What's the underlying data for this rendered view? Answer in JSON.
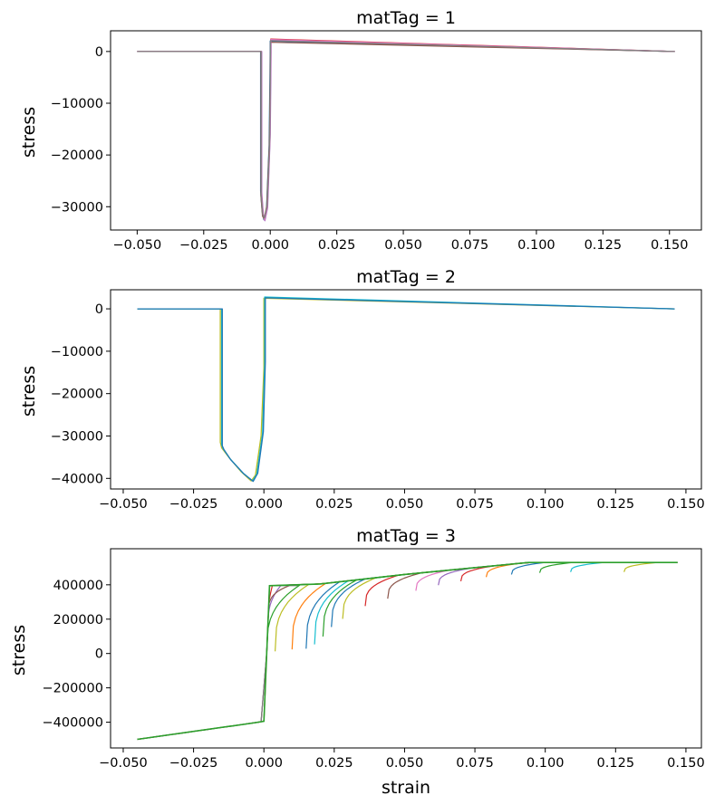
{
  "figure": {
    "xlabel": "strain"
  },
  "chart_data": [
    {
      "type": "line",
      "title": "matTag = 1",
      "xlabel": "",
      "ylabel": "stress",
      "xlim": [
        -0.06,
        0.162
      ],
      "ylim": [
        -34500,
        4000
      ],
      "xticks": [
        -0.05,
        -0.025,
        0.0,
        0.025,
        0.05,
        0.075,
        0.1,
        0.125,
        0.15
      ],
      "xtick_labels": [
        "−0.050",
        "−0.025",
        "0.000",
        "0.025",
        "0.050",
        "0.075",
        "0.100",
        "0.125",
        "0.150"
      ],
      "yticks": [
        0,
        -10000,
        -20000,
        -30000
      ],
      "ytick_labels": [
        "0",
        "−10000",
        "−20000",
        "−30000"
      ],
      "series": [
        {
          "color": "#1f77b4",
          "x": [
            -0.05,
            -0.0036,
            -0.0036,
            -0.003,
            -0.0024,
            -0.0014,
            -0.0004,
            0.0,
            0.0,
            0.152
          ],
          "y": [
            0,
            0,
            -27000,
            -31000,
            -32500,
            -30500,
            -18000,
            0,
            2000,
            0
          ]
        },
        {
          "color": "#d62728",
          "x": [
            -0.05,
            -0.0034,
            -0.0034,
            -0.0028,
            -0.0022,
            -0.0012,
            -0.0002,
            0.0002,
            0.0002,
            0.152
          ],
          "y": [
            0,
            0,
            -27500,
            -31200,
            -32300,
            -30000,
            -17000,
            0,
            2400,
            0
          ]
        },
        {
          "color": "#9467bd",
          "x": [
            -0.05,
            -0.0032,
            -0.0032,
            -0.0026,
            -0.002,
            -0.001,
            0.0,
            0.0003,
            0.0003,
            0.152
          ],
          "y": [
            0,
            0,
            -27200,
            -31500,
            -32700,
            -30200,
            -16000,
            0,
            2200,
            0
          ]
        },
        {
          "color": "#8c564b",
          "x": [
            -0.05,
            -0.0035,
            -0.0035,
            -0.0029,
            -0.0023,
            -0.0013,
            -0.0003,
            0.0001,
            0.0001,
            0.152
          ],
          "y": [
            0,
            0,
            -27800,
            -31800,
            -32400,
            -29800,
            -17500,
            0,
            1800,
            0
          ]
        },
        {
          "color": "#e377c2",
          "x": [
            -0.05,
            -0.0033,
            -0.0033,
            -0.0027,
            -0.0021,
            -0.0011,
            -0.0001,
            0.0002,
            0.0002,
            0.152
          ],
          "y": [
            0,
            0,
            -27300,
            -31300,
            -32600,
            -30100,
            -16800,
            0,
            2300,
            0
          ]
        },
        {
          "color": "#7f7f7f",
          "x": [
            -0.05,
            -0.0034,
            -0.0034,
            -0.0028,
            -0.0022,
            -0.0012,
            -0.0002,
            0.0001,
            0.0001,
            0.152
          ],
          "y": [
            0,
            0,
            -27600,
            -31600,
            -32200,
            -29900,
            -17200,
            0,
            2100,
            0
          ]
        }
      ]
    },
    {
      "type": "line",
      "title": "matTag = 2",
      "xlabel": "",
      "ylabel": "stress",
      "xlim": [
        -0.0545,
        0.1555
      ],
      "ylim": [
        -42500,
        4500
      ],
      "xticks": [
        -0.05,
        -0.025,
        0.0,
        0.025,
        0.05,
        0.075,
        0.1,
        0.125,
        0.15
      ],
      "xtick_labels": [
        "−0.050",
        "−0.025",
        "0.000",
        "0.025",
        "0.050",
        "0.075",
        "0.100",
        "0.125",
        "0.150"
      ],
      "yticks": [
        0,
        -10000,
        -20000,
        -30000,
        -40000
      ],
      "ytick_labels": [
        "0",
        "−10000",
        "−20000",
        "−30000",
        "−40000"
      ],
      "series": [
        {
          "color": "#bcbd22",
          "x": [
            -0.045,
            -0.0155,
            -0.0155,
            -0.015,
            -0.0125,
            -0.008,
            -0.0045,
            -0.003,
            -0.001,
            0.0,
            0.0,
            0.146
          ],
          "y": [
            0,
            0,
            -31500,
            -32800,
            -35000,
            -38500,
            -40600,
            -39200,
            -30000,
            -14000,
            2500,
            0
          ]
        },
        {
          "color": "#17becf",
          "x": [
            -0.045,
            -0.015,
            -0.015,
            -0.0145,
            -0.012,
            -0.0075,
            -0.004,
            -0.0025,
            -0.0005,
            0.0003,
            0.0003,
            0.146
          ],
          "y": [
            0,
            0,
            -32000,
            -33000,
            -35400,
            -38700,
            -40600,
            -39000,
            -29500,
            -13000,
            2800,
            0
          ]
        },
        {
          "color": "#1f77b4",
          "x": [
            -0.045,
            -0.0148,
            -0.0148,
            -0.0142,
            -0.0118,
            -0.0072,
            -0.0038,
            -0.0022,
            -0.0002,
            0.0005,
            0.0005,
            0.146
          ],
          "y": [
            0,
            0,
            -32300,
            -33200,
            -35600,
            -38900,
            -40700,
            -38800,
            -29000,
            -12500,
            2600,
            0
          ]
        }
      ]
    },
    {
      "type": "line",
      "title": "matTag = 3",
      "xlabel": "strain",
      "ylabel": "stress",
      "xlim": [
        -0.0545,
        0.1555
      ],
      "ylim": [
        -550000,
        610000
      ],
      "xticks": [
        -0.05,
        -0.025,
        0.0,
        0.025,
        0.05,
        0.075,
        0.1,
        0.125,
        0.15
      ],
      "xtick_labels": [
        "−0.050",
        "−0.025",
        "0.000",
        "0.025",
        "0.050",
        "0.075",
        "0.100",
        "0.125",
        "0.150"
      ],
      "yticks": [
        400000,
        200000,
        0,
        -200000,
        -400000
      ],
      "ytick_labels": [
        "400000",
        "200000",
        "0",
        "−200000",
        "−400000"
      ],
      "envelope": {
        "x": [
          -0.045,
          -0.004,
          0.0,
          0.002,
          0.02,
          0.05,
          0.094,
          0.147
        ],
        "y": [
          -500000,
          -405000,
          -395000,
          395000,
          405000,
          460000,
          530000,
          530000
        ]
      },
      "branches": [
        {
          "color": "#d62728",
          "x0": 0.0,
          "dip": 0.0,
          "depth": 400000
        },
        {
          "color": "#9467bd",
          "x0": 0.001,
          "dip": 0.003,
          "depth": 390000
        },
        {
          "color": "#8c564b",
          "x0": 0.0015,
          "dip": 0.006,
          "depth": 395000
        },
        {
          "color": "#7f7f7f",
          "x0": 0.002,
          "dip": 0.009,
          "depth": 400000
        },
        {
          "color": "#2ca02c",
          "x0": 0.003,
          "dip": 0.013,
          "depth": 395000
        },
        {
          "color": "#bcbd22",
          "x0": 0.004,
          "dip": 0.016,
          "depth": 390000
        },
        {
          "color": "#ff7f0e",
          "x0": 0.005,
          "dip": 0.022,
          "depth": 385000
        },
        {
          "color": "#1f77b4",
          "x0": 0.006,
          "dip": 0.027,
          "depth": 390000
        },
        {
          "color": "#17becf",
          "x0": 0.008,
          "dip": 0.03,
          "depth": 370000
        },
        {
          "color": "#2ca02c",
          "x0": 0.01,
          "dip": 0.033,
          "depth": 330000
        },
        {
          "color": "#1f77b4",
          "x0": 0.014,
          "dip": 0.036,
          "depth": 280000
        },
        {
          "color": "#bcbd22",
          "x0": 0.02,
          "dip": 0.04,
          "depth": 240000
        },
        {
          "color": "#d62728",
          "x0": 0.03,
          "dip": 0.048,
          "depth": 180000
        },
        {
          "color": "#8c564b",
          "x0": 0.04,
          "dip": 0.056,
          "depth": 150000
        },
        {
          "color": "#e377c2",
          "x0": 0.05,
          "dip": 0.066,
          "depth": 120000
        },
        {
          "color": "#9467bd",
          "x0": 0.06,
          "dip": 0.074,
          "depth": 100000
        },
        {
          "color": "#d62728",
          "x0": 0.07,
          "dip": 0.082,
          "depth": 90000
        },
        {
          "color": "#ff7f0e",
          "x0": 0.08,
          "dip": 0.091,
          "depth": 80000
        },
        {
          "color": "#1f77b4",
          "x0": 0.09,
          "dip": 0.1,
          "depth": 70000
        },
        {
          "color": "#2ca02c",
          "x0": 0.1,
          "dip": 0.11,
          "depth": 60000
        },
        {
          "color": "#17becf",
          "x0": 0.11,
          "dip": 0.121,
          "depth": 55000
        },
        {
          "color": "#bcbd22",
          "x0": 0.12,
          "dip": 0.14,
          "depth": 55000
        }
      ]
    }
  ]
}
